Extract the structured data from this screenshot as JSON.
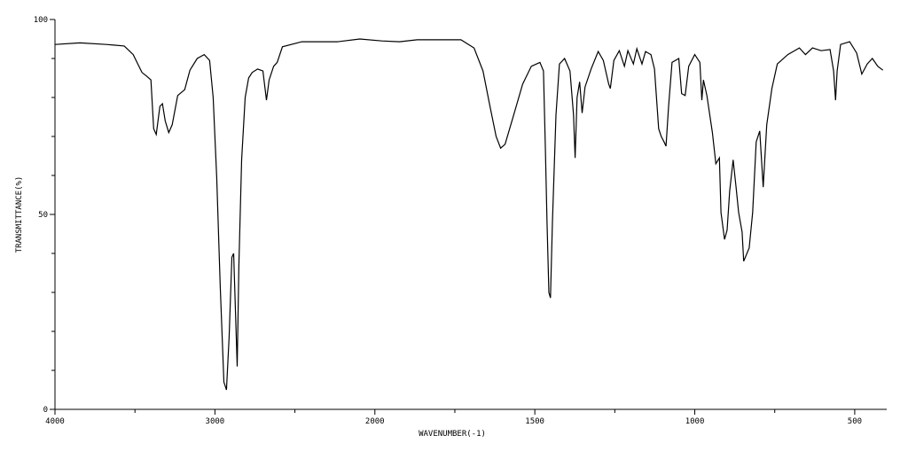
{
  "chart_data": {
    "type": "line",
    "xlabel": "WAVENUMBER(-1)",
    "ylabel": "TRANSMITTANCE(%)",
    "xlim": [
      4000,
      400
    ],
    "xticks": [
      4000,
      3000,
      2000,
      1500,
      1000,
      500
    ],
    "xminor_ticks": [
      3500,
      2500,
      1750,
      1250,
      750
    ],
    "xscale_breaks": [
      {
        "at": 2000,
        "factor": 2
      }
    ],
    "ylim": [
      0,
      100
    ],
    "yticks": [
      0,
      50,
      100
    ],
    "yminor_ticks": [
      10,
      20,
      30,
      40,
      60,
      70,
      80,
      90
    ],
    "series": [
      {
        "color": "#000000",
        "x": [
          4000,
          3844,
          3678,
          3567,
          3511,
          3456,
          3428,
          3400,
          3383,
          3367,
          3344,
          3328,
          3311,
          3289,
          3267,
          3233,
          3189,
          3156,
          3111,
          3067,
          3033,
          3011,
          2989,
          2967,
          2944,
          2928,
          2911,
          2894,
          2883,
          2872,
          2861,
          2850,
          2833,
          2811,
          2789,
          2767,
          2733,
          2700,
          2678,
          2661,
          2633,
          2611,
          2578,
          2456,
          2233,
          2094,
          1978,
          1923,
          1868,
          1731,
          1690,
          1662,
          1640,
          1621,
          1607,
          1593,
          1566,
          1538,
          1511,
          1484,
          1473,
          1467,
          1462,
          1456,
          1451,
          1445,
          1434,
          1423,
          1407,
          1390,
          1379,
          1374,
          1368,
          1360,
          1352,
          1343,
          1324,
          1302,
          1286,
          1269,
          1264,
          1253,
          1236,
          1220,
          1209,
          1192,
          1181,
          1165,
          1154,
          1137,
          1126,
          1113,
          1105,
          1096,
          1090,
          1082,
          1071,
          1050,
          1041,
          1030,
          1019,
          1000,
          984,
          978,
          973,
          962,
          945,
          934,
          923,
          918,
          907,
          899,
          891,
          880,
          871,
          863,
          852,
          847,
          830,
          819,
          808,
          797,
          786,
          775,
          759,
          742,
          709,
          673,
          654,
          632,
          605,
          577,
          566,
          560,
          555,
          544,
          516,
          494,
          478,
          461,
          445,
          428,
          412
        ],
        "values": [
          93.6,
          94,
          93.6,
          93.2,
          91,
          86.4,
          85.5,
          84.5,
          72,
          70.5,
          77.7,
          78.4,
          74,
          71,
          73,
          80.5,
          82,
          87,
          90,
          91,
          89.5,
          80,
          59.5,
          32,
          7,
          5,
          18.6,
          39,
          40,
          25.5,
          11,
          37,
          64,
          80,
          85,
          86.4,
          87.3,
          86.8,
          79.3,
          84.5,
          88,
          89,
          93,
          94.3,
          94.3,
          95,
          94.5,
          94.3,
          94.8,
          94.8,
          92.7,
          86.8,
          77.7,
          70,
          67,
          68,
          75.5,
          83.4,
          88,
          89,
          86.8,
          66.4,
          48,
          30,
          28.6,
          48,
          75.5,
          88.6,
          90,
          86.8,
          75.5,
          64.5,
          80,
          84,
          76,
          82.7,
          87.3,
          91.8,
          89.5,
          83.4,
          82.3,
          89.5,
          92,
          88,
          92,
          88.6,
          92.5,
          88.6,
          91.8,
          91,
          87.3,
          72,
          70,
          68.6,
          67.5,
          77.7,
          89,
          90,
          81,
          80.5,
          88,
          91,
          89,
          79.3,
          84.5,
          80.5,
          71,
          63,
          64.5,
          50.5,
          43.6,
          46,
          56,
          64,
          57,
          50.5,
          45.5,
          38,
          41.4,
          50.5,
          68.6,
          71.4,
          57,
          73,
          82.3,
          88.6,
          91,
          92.7,
          91,
          92.7,
          92,
          92.3,
          86.8,
          79.3,
          86.8,
          93.6,
          94.3,
          91.4,
          86,
          88.6,
          90,
          88,
          87
        ]
      }
    ]
  }
}
